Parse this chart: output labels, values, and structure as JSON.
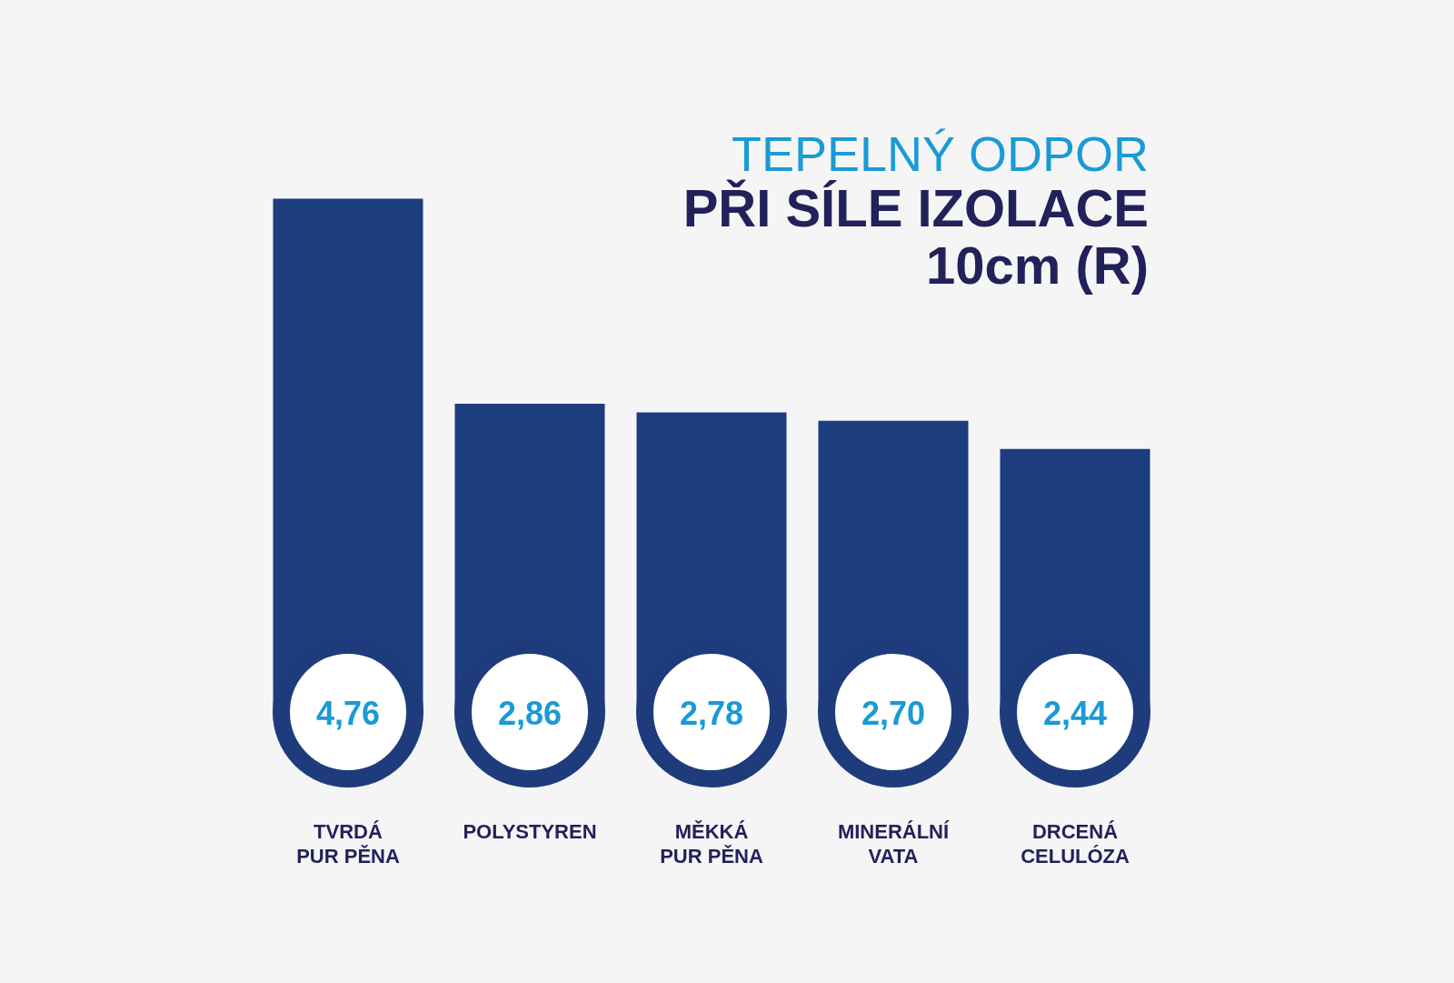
{
  "chart_data": {
    "type": "bar",
    "title": "TEPELNÝ ODPOR",
    "subtitle": "PŘI SÍLE IZOLACE\n10cm (R)",
    "categories": [
      "TVRDÁ\nPUR PĚNA",
      "POLYSTYREN",
      "MĚKKÁ\nPUR PĚNA",
      "MINERÁLNÍ\nVATA",
      "DRCENÁ\nCELULÓZA"
    ],
    "values": [
      4.76,
      2.86,
      2.78,
      2.7,
      2.44
    ],
    "value_labels": [
      "4,76",
      "2,86",
      "2,78",
      "2,70",
      "2,44"
    ],
    "color": "#1c3d7e",
    "grid": false,
    "legend": false
  }
}
